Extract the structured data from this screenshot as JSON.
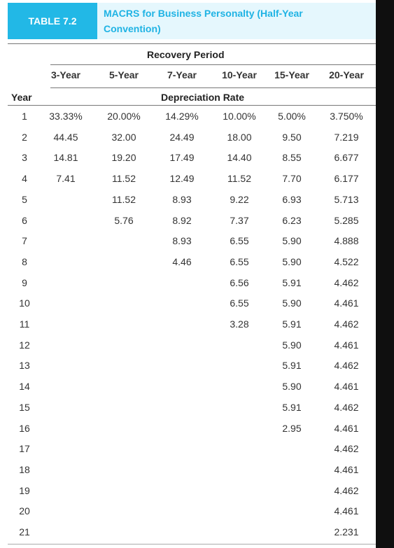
{
  "table": {
    "label": "TABLE 7.2",
    "title": "MACRS for Business Personalty (Half-Year Convention)",
    "group_header": "Recovery Period",
    "year_header": "Year",
    "rate_header": "Depreciation Rate",
    "columns": [
      "3-Year",
      "5-Year",
      "7-Year",
      "10-Year",
      "15-Year",
      "20-Year"
    ],
    "years": [
      "1",
      "2",
      "3",
      "4",
      "5",
      "6",
      "7",
      "8",
      "9",
      "10",
      "11",
      "12",
      "13",
      "14",
      "15",
      "16",
      "17",
      "18",
      "19",
      "20",
      "21"
    ],
    "rates": [
      [
        "33.33%",
        "44.45",
        "14.81",
        "7.41"
      ],
      [
        "20.00%",
        "32.00",
        "19.20",
        "11.52",
        "11.52",
        "5.76"
      ],
      [
        "14.29%",
        "24.49",
        "17.49",
        "12.49",
        "8.93",
        "8.92",
        "8.93",
        "4.46"
      ],
      [
        "10.00%",
        "18.00",
        "14.40",
        "11.52",
        "9.22",
        "7.37",
        "6.55",
        "6.55",
        "6.56",
        "6.55",
        "3.28"
      ],
      [
        "5.00%",
        "9.50",
        "8.55",
        "7.70",
        "6.93",
        "6.23",
        "5.90",
        "5.90",
        "5.91",
        "5.90",
        "5.91",
        "5.90",
        "5.91",
        "5.90",
        "5.91",
        "2.95"
      ],
      [
        "3.750%",
        "7.219",
        "6.677",
        "6.177",
        "5.713",
        "5.285",
        "4.888",
        "4.522",
        "4.462",
        "4.461",
        "4.462",
        "4.461",
        "4.462",
        "4.461",
        "4.462",
        "4.461",
        "4.462",
        "4.461",
        "4.462",
        "4.461",
        "2.231"
      ]
    ]
  },
  "colors": {
    "label_bg": "#22b8e6",
    "title_bg": "#e5f7fd",
    "title_text": "#1fb3e4",
    "frame": "#0f0f0f"
  }
}
